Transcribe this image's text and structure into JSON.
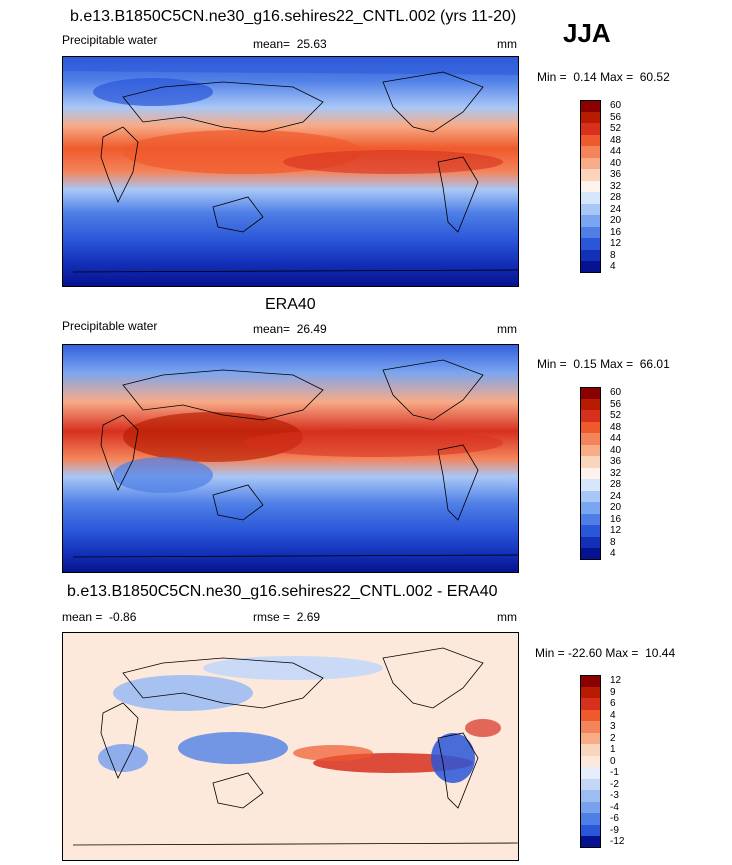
{
  "season": "JJA",
  "chart_data": [
    {
      "type": "heatmap",
      "title": "b.e13.B1850C5CN.ne30_g16.sehires22_CNTL.002 (yrs 11-20)",
      "variable": "Precipitable water",
      "stat_label": "mean=",
      "stat_value": "25.63",
      "units": "mm",
      "min_label": "Min =",
      "min_value": "0.14",
      "max_label": "Max =",
      "max_value": "60.52",
      "levels": [
        "60",
        "56",
        "52",
        "48",
        "44",
        "40",
        "36",
        "32",
        "28",
        "24",
        "20",
        "16",
        "12",
        "8",
        "4"
      ],
      "colors": [
        "#8b0000",
        "#b71c00",
        "#d7301f",
        "#ef5a2c",
        "#f4845a",
        "#f7ab87",
        "#fbd4bc",
        "#fdf2ec",
        "#d6e6fb",
        "#a8c7f7",
        "#7aa5f0",
        "#4f7fe6",
        "#2a56d8",
        "#1330b8",
        "#06128f"
      ]
    },
    {
      "type": "heatmap",
      "title": "ERA40",
      "variable": "Precipitable water",
      "stat_label": "mean=",
      "stat_value": "26.49",
      "units": "mm",
      "min_label": "Min =",
      "min_value": "0.15",
      "max_label": "Max =",
      "max_value": "66.01",
      "levels": [
        "60",
        "56",
        "52",
        "48",
        "44",
        "40",
        "36",
        "32",
        "28",
        "24",
        "20",
        "16",
        "12",
        "8",
        "4"
      ],
      "colors": [
        "#8b0000",
        "#b71c00",
        "#d7301f",
        "#ef5a2c",
        "#f4845a",
        "#f7ab87",
        "#fbd4bc",
        "#fdf2ec",
        "#d6e6fb",
        "#a8c7f7",
        "#7aa5f0",
        "#4f7fe6",
        "#2a56d8",
        "#1330b8",
        "#06128f"
      ]
    },
    {
      "type": "heatmap",
      "title": "b.e13.B1850C5CN.ne30_g16.sehires22_CNTL.002 - ERA40",
      "mean_label": "mean =",
      "mean_value": "-0.86",
      "rmse_label": "rmse =",
      "rmse_value": "2.69",
      "units": "mm",
      "min_label": "Min =",
      "min_value": "-22.60",
      "max_label": "Max =",
      "max_value": "10.44",
      "levels": [
        "12",
        "9",
        "6",
        "4",
        "3",
        "2",
        "1",
        "0",
        "-1",
        "-2",
        "-3",
        "-4",
        "-6",
        "-9",
        "-12"
      ],
      "colors": [
        "#8b0000",
        "#b71c00",
        "#d7301f",
        "#ef5a2c",
        "#f4845a",
        "#f7ab87",
        "#fbd4bc",
        "#fde8dc",
        "#e6eefb",
        "#c4d7f7",
        "#9dbdf2",
        "#7aa2ec",
        "#4f7fe6",
        "#2a56d8",
        "#06128f"
      ]
    }
  ]
}
